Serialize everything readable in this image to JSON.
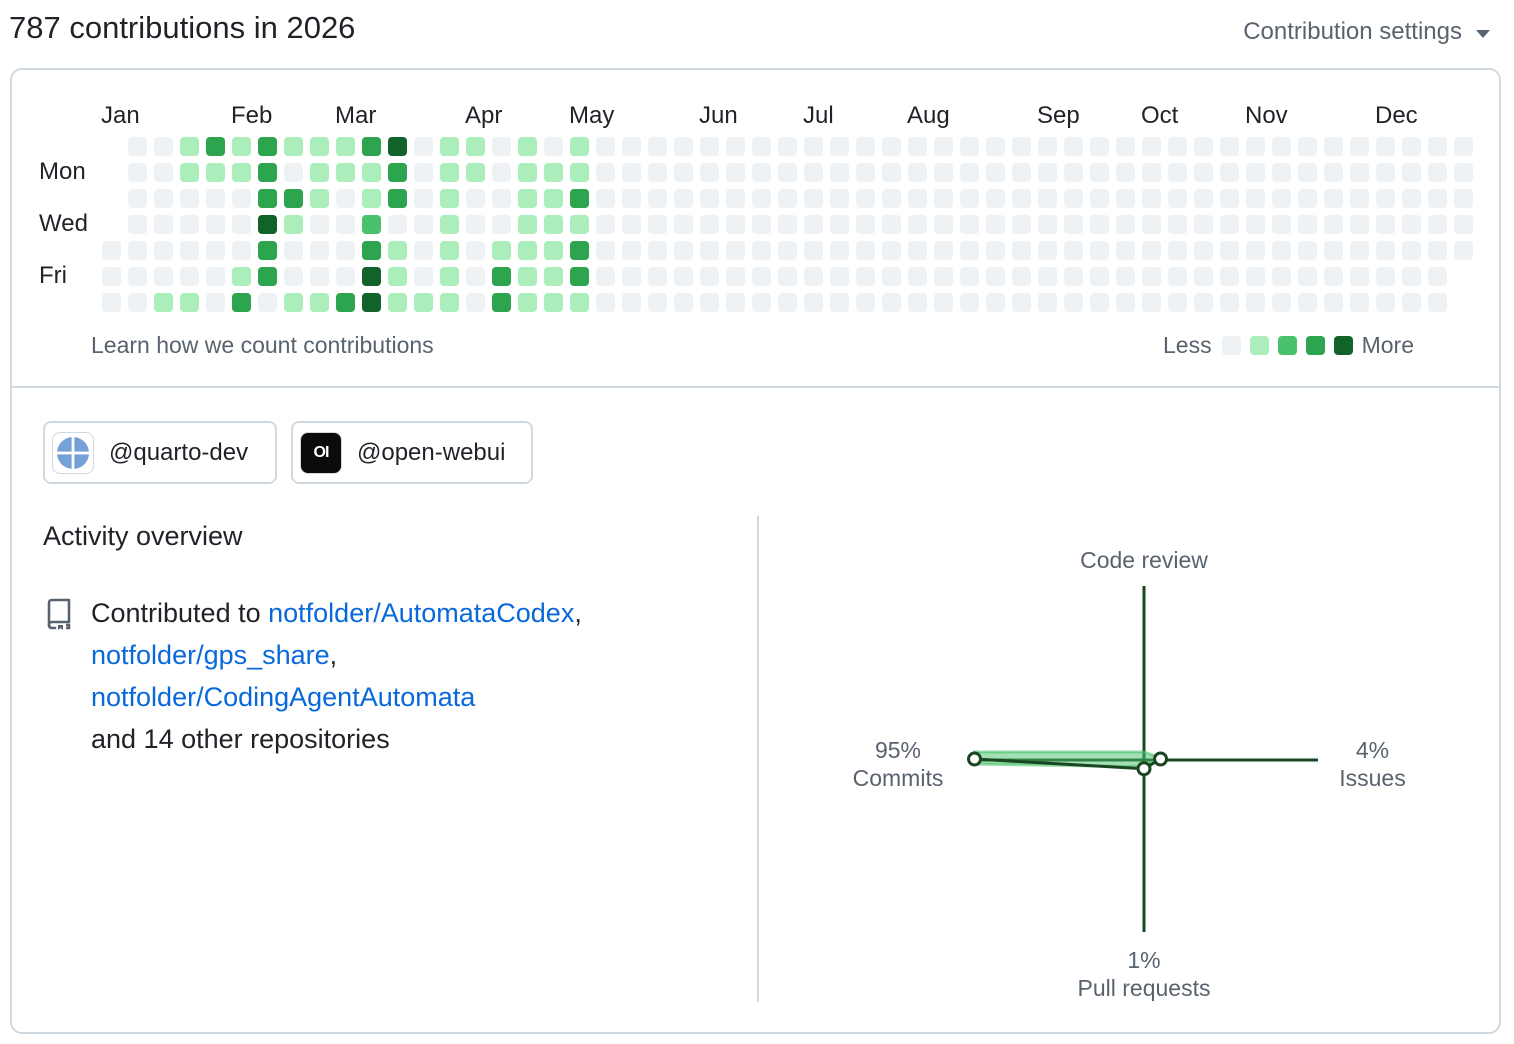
{
  "header": {
    "title": "787 contributions in 2026",
    "settings_label": "Contribution settings",
    "settings_icon": "triangle-down-icon"
  },
  "calendar": {
    "months": [
      "Jan",
      "Feb",
      "Mar",
      "Apr",
      "May",
      "Jun",
      "Jul",
      "Aug",
      "Sep",
      "Oct",
      "Nov",
      "Dec"
    ],
    "day_labels": [
      "Mon",
      "Wed",
      "Fri"
    ],
    "colors": [
      "#eff2f5",
      "#aceebb",
      "#4ac26b",
      "#2da44e",
      "#116329"
    ],
    "weeks": [
      [
        null,
        null,
        null,
        null,
        0,
        0,
        0
      ],
      [
        0,
        0,
        0,
        0,
        0,
        0,
        0
      ],
      [
        0,
        0,
        0,
        0,
        0,
        0,
        1
      ],
      [
        1,
        1,
        0,
        0,
        0,
        0,
        1
      ],
      [
        3,
        1,
        0,
        0,
        0,
        0,
        0
      ],
      [
        1,
        1,
        0,
        0,
        0,
        1,
        3
      ],
      [
        3,
        3,
        3,
        4,
        3,
        3,
        0
      ],
      [
        1,
        0,
        3,
        1,
        0,
        0,
        1
      ],
      [
        1,
        1,
        1,
        0,
        0,
        0,
        1
      ],
      [
        1,
        1,
        0,
        0,
        0,
        0,
        3
      ],
      [
        3,
        1,
        1,
        2,
        3,
        4,
        4
      ],
      [
        4,
        3,
        3,
        0,
        1,
        1,
        1
      ],
      [
        0,
        0,
        0,
        0,
        0,
        0,
        1
      ],
      [
        1,
        1,
        1,
        1,
        1,
        1,
        1
      ],
      [
        1,
        1,
        0,
        0,
        0,
        0,
        0
      ],
      [
        0,
        0,
        0,
        0,
        1,
        3,
        3
      ],
      [
        1,
        1,
        1,
        1,
        1,
        1,
        1
      ],
      [
        0,
        1,
        1,
        1,
        1,
        1,
        1
      ],
      [
        1,
        1,
        3,
        1,
        3,
        3,
        1
      ],
      [
        0,
        0,
        0,
        0,
        0,
        0,
        0
      ],
      [
        0,
        0,
        0,
        0,
        0,
        0,
        0
      ],
      [
        0,
        0,
        0,
        0,
        0,
        0,
        0
      ],
      [
        0,
        0,
        0,
        0,
        0,
        0,
        0
      ],
      [
        0,
        0,
        0,
        0,
        0,
        0,
        0
      ],
      [
        0,
        0,
        0,
        0,
        0,
        0,
        0
      ],
      [
        0,
        0,
        0,
        0,
        0,
        0,
        0
      ],
      [
        0,
        0,
        0,
        0,
        0,
        0,
        0
      ],
      [
        0,
        0,
        0,
        0,
        0,
        0,
        0
      ],
      [
        0,
        0,
        0,
        0,
        0,
        0,
        0
      ],
      [
        0,
        0,
        0,
        0,
        0,
        0,
        0
      ],
      [
        0,
        0,
        0,
        0,
        0,
        0,
        0
      ],
      [
        0,
        0,
        0,
        0,
        0,
        0,
        0
      ],
      [
        0,
        0,
        0,
        0,
        0,
        0,
        0
      ],
      [
        0,
        0,
        0,
        0,
        0,
        0,
        0
      ],
      [
        0,
        0,
        0,
        0,
        0,
        0,
        0
      ],
      [
        0,
        0,
        0,
        0,
        0,
        0,
        0
      ],
      [
        0,
        0,
        0,
        0,
        0,
        0,
        0
      ],
      [
        0,
        0,
        0,
        0,
        0,
        0,
        0
      ],
      [
        0,
        0,
        0,
        0,
        0,
        0,
        0
      ],
      [
        0,
        0,
        0,
        0,
        0,
        0,
        0
      ],
      [
        0,
        0,
        0,
        0,
        0,
        0,
        0
      ],
      [
        0,
        0,
        0,
        0,
        0,
        0,
        0
      ],
      [
        0,
        0,
        0,
        0,
        0,
        0,
        0
      ],
      [
        0,
        0,
        0,
        0,
        0,
        0,
        0
      ],
      [
        0,
        0,
        0,
        0,
        0,
        0,
        0
      ],
      [
        0,
        0,
        0,
        0,
        0,
        0,
        0
      ],
      [
        0,
        0,
        0,
        0,
        0,
        0,
        0
      ],
      [
        0,
        0,
        0,
        0,
        0,
        0,
        0
      ],
      [
        0,
        0,
        0,
        0,
        0,
        0,
        0
      ],
      [
        0,
        0,
        0,
        0,
        0,
        0,
        0
      ],
      [
        0,
        0,
        0,
        0,
        0,
        0,
        0
      ],
      [
        0,
        0,
        0,
        0,
        0,
        0,
        0
      ],
      [
        0,
        0,
        0,
        0,
        0,
        null,
        null
      ]
    ],
    "learn_link": "Learn how we count contributions",
    "legend_less": "Less",
    "legend_more": "More"
  },
  "orgs": [
    {
      "handle": "@quarto-dev",
      "icon": "quarto-logo-icon"
    },
    {
      "handle": "@open-webui",
      "icon": "open-webui-logo-icon",
      "logo_text": "OI"
    }
  ],
  "activity": {
    "title": "Activity overview",
    "icon": "repo-icon",
    "contributed_prefix": "Contributed to",
    "repos": [
      "notfolder/AutomataCodex",
      "notfolder/gps_share",
      "notfolder/CodingAgentAutomata"
    ],
    "comma": ",",
    "suffix": "and 14 other repositories"
  },
  "chart_data": {
    "type": "radar",
    "axes": [
      {
        "name": "Code review",
        "value": 0,
        "label": ""
      },
      {
        "name": "Issues",
        "value": 4,
        "label": "4%"
      },
      {
        "name": "Pull requests",
        "value": 1,
        "label": "1%"
      },
      {
        "name": "Commits",
        "value": 95,
        "label": "95%"
      }
    ],
    "max": 100,
    "line_color": "#1a4721",
    "fill_color": "#4ac26b"
  }
}
